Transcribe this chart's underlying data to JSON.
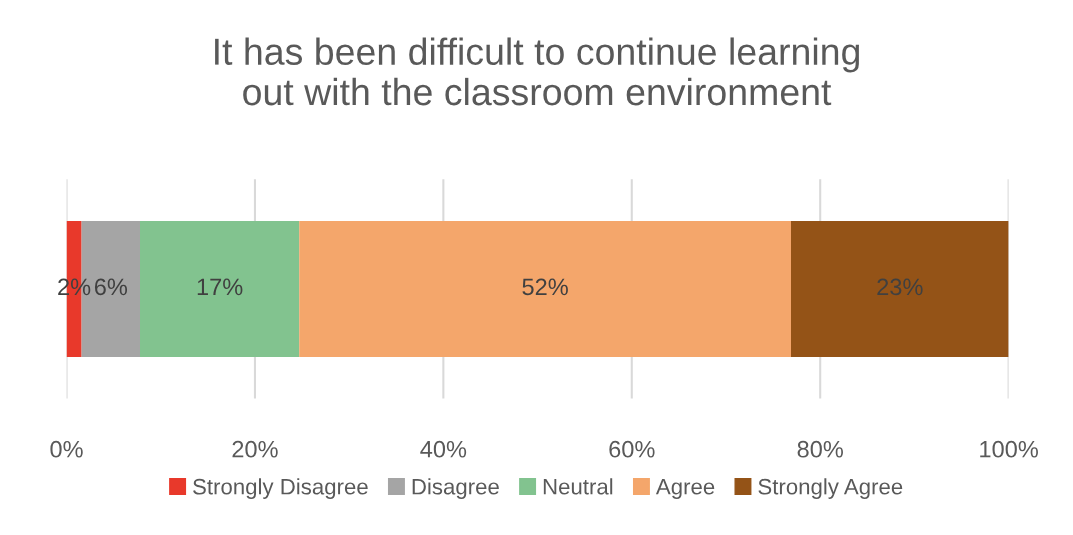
{
  "chart_data": {
    "type": "bar",
    "orientation": "horizontal",
    "stacked": true,
    "title": "It has been difficult to continue learning\nout with the classroom environment",
    "categories": [
      null
    ],
    "series": [
      {
        "name": "Strongly Disagree",
        "color": "#e8392b",
        "values": [
          1.6
        ],
        "value_labels": [
          "2%"
        ]
      },
      {
        "name": "Disagree",
        "color": "#a5a5a5",
        "values": [
          6.2
        ],
        "value_labels": [
          "6%"
        ]
      },
      {
        "name": "Neutral",
        "color": "#82c38f",
        "values": [
          16.9
        ],
        "value_labels": [
          "17%"
        ]
      },
      {
        "name": "Agree",
        "color": "#f4a66b",
        "values": [
          52.2
        ],
        "value_labels": [
          "52%"
        ]
      },
      {
        "name": "Strongly Agree",
        "color": "#945317",
        "values": [
          23.1
        ],
        "value_labels": [
          "23%"
        ]
      }
    ],
    "xlim": [
      0,
      100
    ],
    "xticks": [
      {
        "value": 0,
        "label": "0%"
      },
      {
        "value": 20,
        "label": "20%"
      },
      {
        "value": 40,
        "label": "40%"
      },
      {
        "value": 60,
        "label": "60%"
      },
      {
        "value": 80,
        "label": "80%"
      },
      {
        "value": 100,
        "label": "100%"
      }
    ],
    "grid": "x",
    "legend": "bottom"
  }
}
